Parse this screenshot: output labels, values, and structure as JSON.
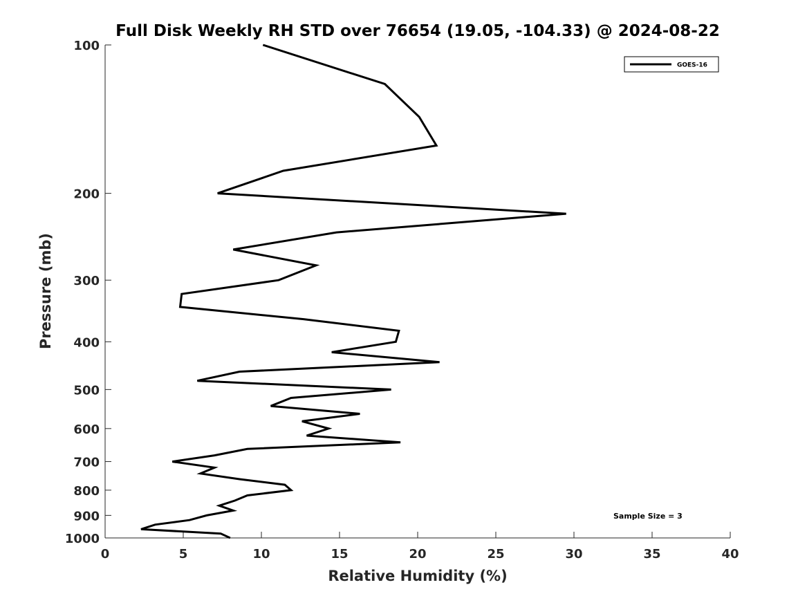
{
  "chart_data": {
    "type": "line",
    "title": "Full Disk Weekly RH STD over 76654 (19.05, -104.33) @ 2024-08-22",
    "xlabel": "Relative Humidity (%)",
    "ylabel": "Pressure (mb)",
    "xlim": [
      0,
      40
    ],
    "ylim": [
      100,
      1000
    ],
    "yscale": "log",
    "y_reversed": true,
    "xticks": [
      "0",
      "5",
      "10",
      "15",
      "20",
      "25",
      "30",
      "35",
      "40"
    ],
    "yticks": [
      "100",
      "200",
      "300",
      "400",
      "500",
      "600",
      "700",
      "800",
      "900",
      "1000"
    ],
    "legend": {
      "placement": "top-right",
      "entries": [
        "GOES-16"
      ]
    },
    "annotation": "Sample Size = 3",
    "series": [
      {
        "name": "GOES-16",
        "color": "#000000",
        "x": [
          10.1,
          17.9,
          20.1,
          21.2,
          11.4,
          7.2,
          29.5,
          14.8,
          8.2,
          13.5,
          11.1,
          4.9,
          4.8,
          12.7,
          18.8,
          18.6,
          14.5,
          21.4,
          8.6,
          5.9,
          18.3,
          11.9,
          10.6,
          16.3,
          12.6,
          14.3,
          12.9,
          18.9,
          9.1,
          7.0,
          4.3,
          7.0,
          6.1,
          8.6,
          11.5,
          11.9,
          9.1,
          8.3,
          7.3,
          8.2,
          6.5,
          5.4,
          3.2,
          2.3,
          7.4,
          8.0
        ],
        "y": [
          100,
          120,
          140,
          160,
          180,
          200,
          220,
          240,
          260,
          280,
          300,
          320,
          340,
          360,
          380,
          400,
          420,
          440,
          460,
          480,
          500,
          520,
          540,
          560,
          580,
          600,
          620,
          640,
          660,
          680,
          700,
          720,
          740,
          760,
          780,
          800,
          820,
          840,
          860,
          880,
          900,
          920,
          940,
          960,
          980,
          1000
        ]
      }
    ]
  }
}
